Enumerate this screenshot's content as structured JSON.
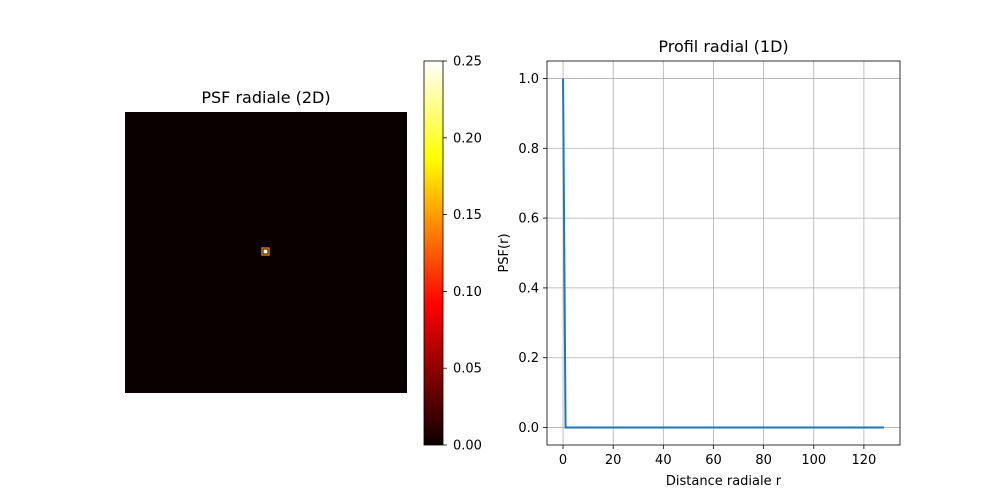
{
  "colors": {
    "background": "#ffffff",
    "image_background": "#0b0000",
    "line": "#1f77b4",
    "grid": "#b0b0b0",
    "axis": "#000000"
  },
  "chart_data": [
    {
      "type": "heatmap",
      "title": "PSF radiale (2D)",
      "colormap": "hot",
      "axes_visible": false,
      "image_description_of_content": "dark field with a single bright central pixel",
      "peak_value": 0.25,
      "peak_location": "center",
      "colorbar": {
        "range": [
          0.0,
          0.25
        ],
        "ticks": [
          0.0,
          0.05,
          0.1,
          0.15,
          0.2,
          0.25
        ],
        "tick_labels": [
          "0.00",
          "0.05",
          "0.10",
          "0.15",
          "0.20",
          "0.25"
        ],
        "placement": "right"
      }
    },
    {
      "type": "line",
      "title": "Profil radial (1D)",
      "xlabel": "Distance radiale r",
      "ylabel": "PSF(r)",
      "xlim": [
        -6.4,
        134.4
      ],
      "ylim": [
        -0.05,
        1.05
      ],
      "grid": true,
      "x_ticks": [
        0,
        20,
        40,
        60,
        80,
        100,
        120
      ],
      "x_tick_labels": [
        "0",
        "20",
        "40",
        "60",
        "80",
        "100",
        "120"
      ],
      "y_ticks": [
        0.0,
        0.2,
        0.4,
        0.6,
        0.8,
        1.0
      ],
      "y_tick_labels": [
        "0.0",
        "0.2",
        "0.4",
        "0.6",
        "0.8",
        "1.0"
      ],
      "series": [
        {
          "color": "#1f77b4",
          "x": [
            0,
            1,
            2,
            128
          ],
          "y": [
            1.0,
            0.0,
            0.0,
            0.0
          ]
        }
      ]
    }
  ]
}
